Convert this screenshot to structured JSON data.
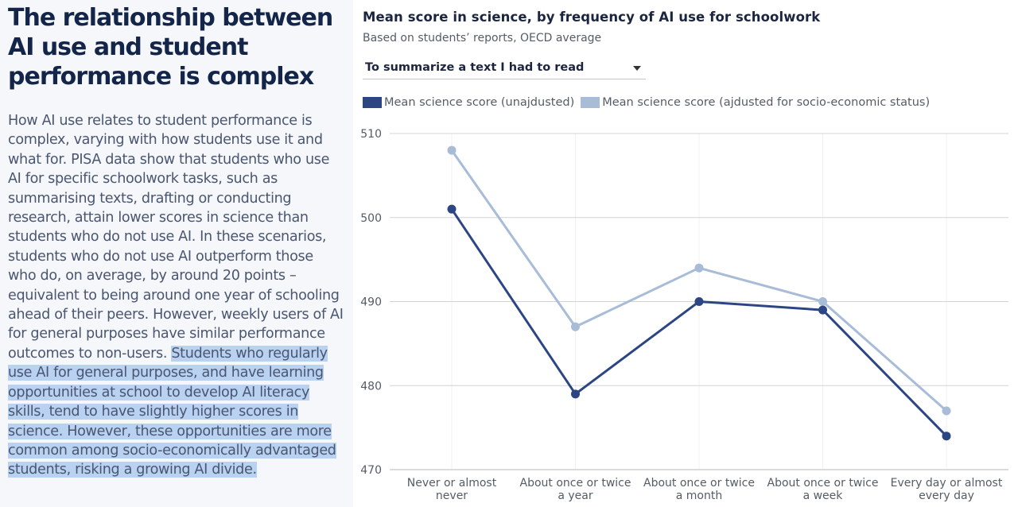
{
  "article": {
    "headline": "The relationship between AI use and student performance is complex",
    "paragraph_plain": "How AI use relates to student performance is complex, varying with how students use it and what for. PISA data show that students who use AI for specific schoolwork tasks, such as summarising texts, drafting or conducting research, attain lower scores in science than students who do not use AI. In these scenarios, students who do not use AI outperform those who do, on average, by around 20 points – equivalent to being around one year of schooling ahead of their peers. However, weekly users of AI for general purposes have similar performance outcomes to non-users. ",
    "paragraph_highlighted": "Students who regularly use AI for general purposes, and have learning opportunities at school to develop AI literacy skills, tend to have slightly higher scores in science. However, these opportunities are more common among socio-economically advantaged students, risking a growing AI divide."
  },
  "chart_panel": {
    "dropdown_selected": "To summarize a text I had to read",
    "colors": {
      "unadjusted": "#2c4684",
      "adjusted": "#a8bcd8",
      "grid": "#d0d4da"
    }
  },
  "chart_data": {
    "type": "line",
    "title": "Mean score in science, by frequency of AI use for schoolwork",
    "subtitle": "Based on students’ reports, OECD average",
    "categories": [
      [
        "Never or almost",
        "never"
      ],
      [
        "About once or twice",
        "a year"
      ],
      [
        "About once or twice",
        "a month"
      ],
      [
        "About once or twice",
        "a week"
      ],
      [
        "Every day or almost",
        "every day"
      ]
    ],
    "series": [
      {
        "name": "Mean science score (unajdusted)",
        "values": [
          501,
          479,
          490,
          489,
          474
        ]
      },
      {
        "name": "Mean science score (ajdusted for socio-economic status)",
        "values": [
          508,
          487,
          494,
          490,
          477
        ]
      }
    ],
    "ylim": [
      470,
      510
    ],
    "yticks": [
      470,
      480,
      490,
      500,
      510
    ],
    "legend_position": "top-left",
    "grid": true
  }
}
